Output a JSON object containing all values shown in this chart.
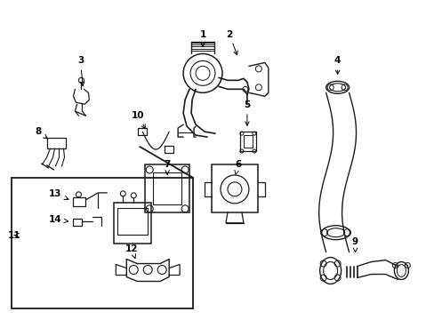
{
  "bg_color": "#ffffff",
  "line_color": "#1a1a1a",
  "figsize": [
    4.89,
    3.6
  ],
  "dpi": 100,
  "lw": 0.9,
  "coord_system": "pixels_489x360"
}
